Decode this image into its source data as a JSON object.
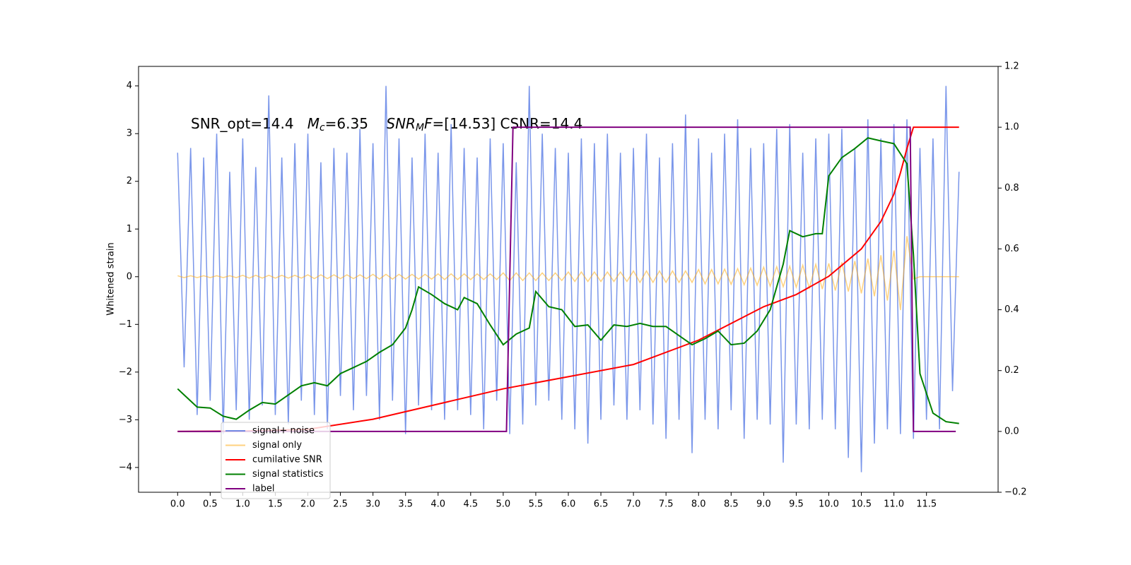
{
  "chart_data": {
    "type": "line",
    "y_label": "Whitened strain",
    "annotation": [
      "SNR_opt=14.4   ",
      "M",
      "c",
      "=6.35    ",
      "SNR",
      "M",
      "F",
      "=[14.53] CSNR=14.4"
    ],
    "xlim": [
      -0.6,
      12.6
    ],
    "ylim": [
      -4.52,
      4.41
    ],
    "y2lim": [
      -0.2,
      1.2
    ],
    "xticks": [
      {
        "value": 0,
        "label": "0.0"
      },
      {
        "value": 0.5,
        "label": "0.5"
      },
      {
        "value": 1,
        "label": "1.0"
      },
      {
        "value": 1.5,
        "label": "1.5"
      },
      {
        "value": 2,
        "label": "2.0"
      },
      {
        "value": 2.5,
        "label": "2.5"
      },
      {
        "value": 3,
        "label": "3.0"
      },
      {
        "value": 3.5,
        "label": "3.5"
      },
      {
        "value": 4,
        "label": "4.0"
      },
      {
        "value": 4.5,
        "label": "4.5"
      },
      {
        "value": 5,
        "label": "5.0"
      },
      {
        "value": 5.5,
        "label": "5.5"
      },
      {
        "value": 6,
        "label": "6.0"
      },
      {
        "value": 6.5,
        "label": "6.5"
      },
      {
        "value": 7,
        "label": "7.0"
      },
      {
        "value": 7.5,
        "label": "7.5"
      },
      {
        "value": 8,
        "label": "8.0"
      },
      {
        "value": 8.5,
        "label": "8.5"
      },
      {
        "value": 9,
        "label": "9.0"
      },
      {
        "value": 9.5,
        "label": "9.5"
      },
      {
        "value": 10,
        "label": "10.0"
      },
      {
        "value": 10.5,
        "label": "10.5"
      },
      {
        "value": 11,
        "label": "11.0"
      },
      {
        "value": 11.5,
        "label": "11.5"
      }
    ],
    "yticks": [
      {
        "value": -4,
        "label": "−4"
      },
      {
        "value": -3,
        "label": "−3"
      },
      {
        "value": -2,
        "label": "−2"
      },
      {
        "value": -1,
        "label": "−1"
      },
      0,
      1,
      2,
      3,
      4
    ],
    "y2ticks": [
      {
        "value": -0.2,
        "label": "−0.2"
      },
      {
        "value": 0,
        "label": "0.0"
      },
      {
        "value": 0.2,
        "label": "0.2"
      },
      {
        "value": 0.4,
        "label": "0.4"
      },
      {
        "value": 0.6,
        "label": "0.6"
      },
      {
        "value": 0.8,
        "label": "0.8"
      },
      {
        "value": 1,
        "label": "1.0"
      },
      {
        "value": 1.2,
        "label": "1.2"
      }
    ],
    "x": [
      0,
      0.1,
      0.2,
      0.3,
      0.4,
      0.5,
      0.6,
      0.7,
      0.8,
      0.9,
      1,
      1.1,
      1.2,
      1.3,
      1.4,
      1.5,
      1.6,
      1.7,
      1.8,
      1.9,
      2,
      2.1,
      2.2,
      2.3,
      2.4,
      2.5,
      2.6,
      2.7,
      2.8,
      2.9,
      3,
      3.1,
      3.2,
      3.3,
      3.4,
      3.5,
      3.6,
      3.7,
      3.8,
      3.9,
      4,
      4.1,
      4.2,
      4.3,
      4.4,
      4.5,
      4.6,
      4.7,
      4.8,
      4.9,
      5,
      5.1,
      5.2,
      5.3,
      5.4,
      5.5,
      5.6,
      5.7,
      5.8,
      5.9,
      6,
      6.1,
      6.2,
      6.3,
      6.4,
      6.5,
      6.6,
      6.7,
      6.8,
      6.9,
      7,
      7.1,
      7.2,
      7.3,
      7.4,
      7.5,
      7.6,
      7.7,
      7.8,
      7.9,
      8,
      8.1,
      8.2,
      8.3,
      8.4,
      8.5,
      8.6,
      8.7,
      8.8,
      8.9,
      9,
      9.1,
      9.2,
      9.3,
      9.4,
      9.5,
      9.6,
      9.7,
      9.8,
      9.9,
      10,
      10.1,
      10.2,
      10.3,
      10.4,
      10.5,
      10.6,
      10.7,
      10.8,
      10.9,
      11,
      11.1,
      11.2,
      11.3,
      11.4,
      11.5,
      11.6,
      11.7,
      11.8,
      11.9,
      12
    ],
    "series": [
      {
        "name": "signal+ noise",
        "color": "#4169e1",
        "alpha": 0.7,
        "values": [
          2.6,
          -1.9,
          2.7,
          -2.9,
          2.5,
          -2.6,
          3.0,
          -3.3,
          2.2,
          -2.8,
          2.9,
          -3.0,
          2.3,
          -2.7,
          3.8,
          -2.9,
          2.5,
          -3.1,
          2.8,
          -2.6,
          3.0,
          -2.9,
          2.4,
          -3.2,
          2.7,
          -2.5,
          2.6,
          -2.8,
          3.1,
          -2.5,
          2.8,
          -3.0,
          4.0,
          -2.6,
          2.9,
          -3.3,
          2.5,
          -2.7,
          3.0,
          -2.8,
          2.6,
          -3.0,
          3.2,
          -2.8,
          2.7,
          -2.9,
          2.5,
          -3.2,
          2.9,
          -2.6,
          2.8,
          -3.3,
          2.4,
          -3.1,
          4.0,
          -2.7,
          3.0,
          -2.6,
          2.7,
          -3.0,
          2.6,
          -3.2,
          2.9,
          -3.5,
          2.8,
          -3.0,
          3.0,
          -2.7,
          2.6,
          -3.0,
          2.7,
          -2.8,
          3.0,
          -3.1,
          2.5,
          -3.4,
          2.8,
          -3.0,
          3.4,
          -3.7,
          2.9,
          -3.0,
          2.6,
          -3.2,
          3.0,
          -2.8,
          3.3,
          -3.4,
          2.7,
          -3.0,
          2.8,
          -3.1,
          3.1,
          -3.9,
          3.2,
          -3.1,
          2.6,
          -3.2,
          2.9,
          -3.0,
          3.0,
          -3.2,
          3.1,
          -3.8,
          2.7,
          -4.1,
          3.3,
          -3.5,
          2.9,
          -3.2,
          3.2,
          -3.3,
          3.3,
          -3.4,
          2.7,
          -3.0,
          2.9,
          -3.2,
          4.0,
          -2.4,
          2.2
        ]
      },
      {
        "name": "signal only",
        "color": "#ffa500",
        "alpha": 0.5,
        "values": [
          0.02,
          -0.02,
          0.02,
          -0.02,
          0.02,
          -0.02,
          0.02,
          -0.02,
          0.02,
          -0.02,
          0.03,
          -0.03,
          0.03,
          -0.03,
          0.03,
          -0.03,
          0.03,
          -0.03,
          0.03,
          -0.03,
          0.04,
          -0.04,
          0.04,
          -0.04,
          0.04,
          -0.04,
          0.04,
          -0.04,
          0.04,
          -0.04,
          0.05,
          -0.05,
          0.05,
          -0.05,
          0.05,
          -0.05,
          0.05,
          -0.05,
          0.05,
          -0.05,
          0.06,
          -0.06,
          0.06,
          -0.06,
          0.06,
          -0.06,
          0.06,
          -0.06,
          0.06,
          -0.06,
          0.08,
          -0.08,
          0.08,
          -0.08,
          0.08,
          -0.08,
          0.08,
          -0.08,
          0.08,
          -0.08,
          0.1,
          -0.1,
          0.1,
          -0.1,
          0.1,
          -0.1,
          0.1,
          -0.1,
          0.1,
          -0.1,
          0.12,
          -0.12,
          0.12,
          -0.12,
          0.12,
          -0.12,
          0.12,
          -0.12,
          0.12,
          -0.12,
          0.15,
          -0.15,
          0.15,
          -0.15,
          0.16,
          -0.16,
          0.17,
          -0.17,
          0.18,
          -0.18,
          0.2,
          -0.2,
          0.21,
          -0.21,
          0.22,
          -0.22,
          0.24,
          -0.24,
          0.26,
          -0.26,
          0.28,
          -0.29,
          0.3,
          -0.31,
          0.33,
          -0.35,
          0.38,
          -0.41,
          0.45,
          -0.5,
          0.55,
          -0.7,
          0.85,
          -0.05,
          0,
          0,
          0,
          0,
          0,
          0,
          0
        ]
      },
      {
        "name": "cumilative SNR",
        "color": "#ff0000",
        "axis": "y2",
        "x": [
          0,
          1,
          2,
          3,
          4,
          5,
          6,
          7,
          8,
          9,
          9.5,
          10,
          10.5,
          10.8,
          11,
          11.1,
          11.2,
          11.3,
          12
        ],
        "values": [
          0,
          0.001,
          0.007,
          0.04,
          0.09,
          0.14,
          0.18,
          0.22,
          0.3,
          0.41,
          0.45,
          0.51,
          0.6,
          0.69,
          0.78,
          0.85,
          0.93,
          1,
          1
        ]
      },
      {
        "name": "signal statistics",
        "color": "#008000",
        "axis": "y2",
        "x": [
          0,
          0.3,
          0.5,
          0.7,
          0.9,
          1.1,
          1.3,
          1.5,
          1.7,
          1.9,
          2.1,
          2.3,
          2.5,
          2.7,
          2.9,
          3.1,
          3.3,
          3.5,
          3.6,
          3.7,
          3.9,
          4.1,
          4.3,
          4.4,
          4.6,
          4.8,
          5,
          5.2,
          5.4,
          5.5,
          5.7,
          5.9,
          6.1,
          6.3,
          6.5,
          6.7,
          6.9,
          7.1,
          7.3,
          7.5,
          7.7,
          7.9,
          8.1,
          8.3,
          8.5,
          8.7,
          8.9,
          9.1,
          9.3,
          9.4,
          9.6,
          9.8,
          9.9,
          10,
          10.2,
          10.4,
          10.6,
          10.8,
          11,
          11.2,
          11.3,
          11.4,
          11.6,
          11.8,
          12
        ],
        "values": [
          0.14,
          0.08,
          0.077,
          0.05,
          0.04,
          0.07,
          0.095,
          0.09,
          0.12,
          0.15,
          0.16,
          0.15,
          0.19,
          0.21,
          0.23,
          0.26,
          0.285,
          0.34,
          0.4,
          0.475,
          0.45,
          0.42,
          0.4,
          0.44,
          0.42,
          0.35,
          0.285,
          0.32,
          0.34,
          0.46,
          0.41,
          0.4,
          0.345,
          0.35,
          0.3,
          0.35,
          0.345,
          0.355,
          0.345,
          0.345,
          0.315,
          0.285,
          0.305,
          0.33,
          0.285,
          0.29,
          0.33,
          0.4,
          0.55,
          0.66,
          0.64,
          0.65,
          0.65,
          0.84,
          0.9,
          0.93,
          0.965,
          0.955,
          0.946,
          0.88,
          0.58,
          0.19,
          0.06,
          0.032,
          0.026
        ]
      },
      {
        "name": "label",
        "color": "#800080",
        "axis": "y2",
        "x": [
          0,
          5.05,
          5.15,
          11.25,
          11.3,
          11.95
        ],
        "values": [
          0,
          0,
          1,
          1,
          0,
          0
        ]
      }
    ]
  }
}
